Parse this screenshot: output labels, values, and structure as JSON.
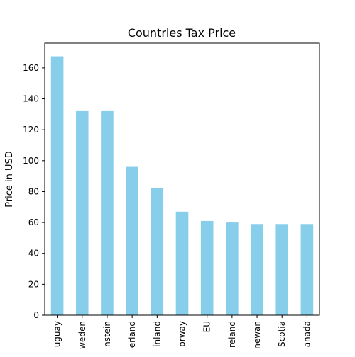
{
  "chart_data": {
    "type": "bar",
    "title": "Countries Tax Price",
    "xlabel": "",
    "ylabel": "Price in USD",
    "categories": [
      "uguay",
      "weden",
      "nstein",
      "erland",
      "inland",
      "orway",
      "EU",
      "reland",
      "newan",
      "Scotia",
      "anada"
    ],
    "values": [
      167.5,
      132.5,
      132.5,
      96,
      82.5,
      67,
      61,
      60,
      59,
      59,
      59
    ],
    "ylim": [
      0,
      176
    ],
    "yticks": [
      0,
      20,
      40,
      60,
      80,
      100,
      120,
      140,
      160
    ],
    "bar_color": "#87CEEB",
    "grid": false,
    "legend": "none"
  }
}
